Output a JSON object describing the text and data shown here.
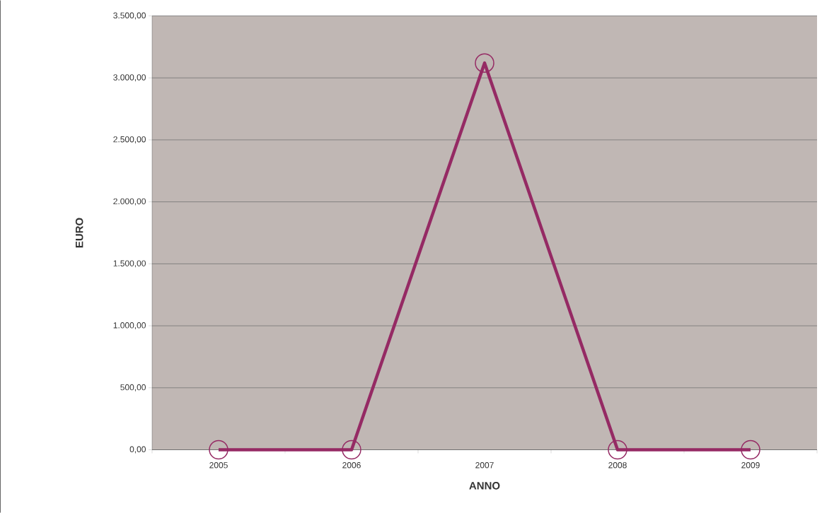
{
  "chart_data": {
    "type": "line",
    "xlabel": "ANNO",
    "ylabel": "EURO",
    "categories": [
      "2005",
      "2006",
      "2007",
      "2008",
      "2009"
    ],
    "values": [
      0,
      0,
      3120,
      0,
      0
    ],
    "color": "#952a64",
    "marker": "circle",
    "grid": "y",
    "ylim": [
      0,
      3500
    ],
    "yticks": [
      {
        "value": 0,
        "label": "0,00"
      },
      {
        "value": 500,
        "label": "500,00"
      },
      {
        "value": 1000,
        "label": "1.000,00"
      },
      {
        "value": 1500,
        "label": "1.500,00"
      },
      {
        "value": 2000,
        "label": "2.000,00"
      },
      {
        "value": 2500,
        "label": "2.500,00"
      },
      {
        "value": 3000,
        "label": "3.000,00"
      },
      {
        "value": 3500,
        "label": "3.500,00"
      }
    ]
  }
}
